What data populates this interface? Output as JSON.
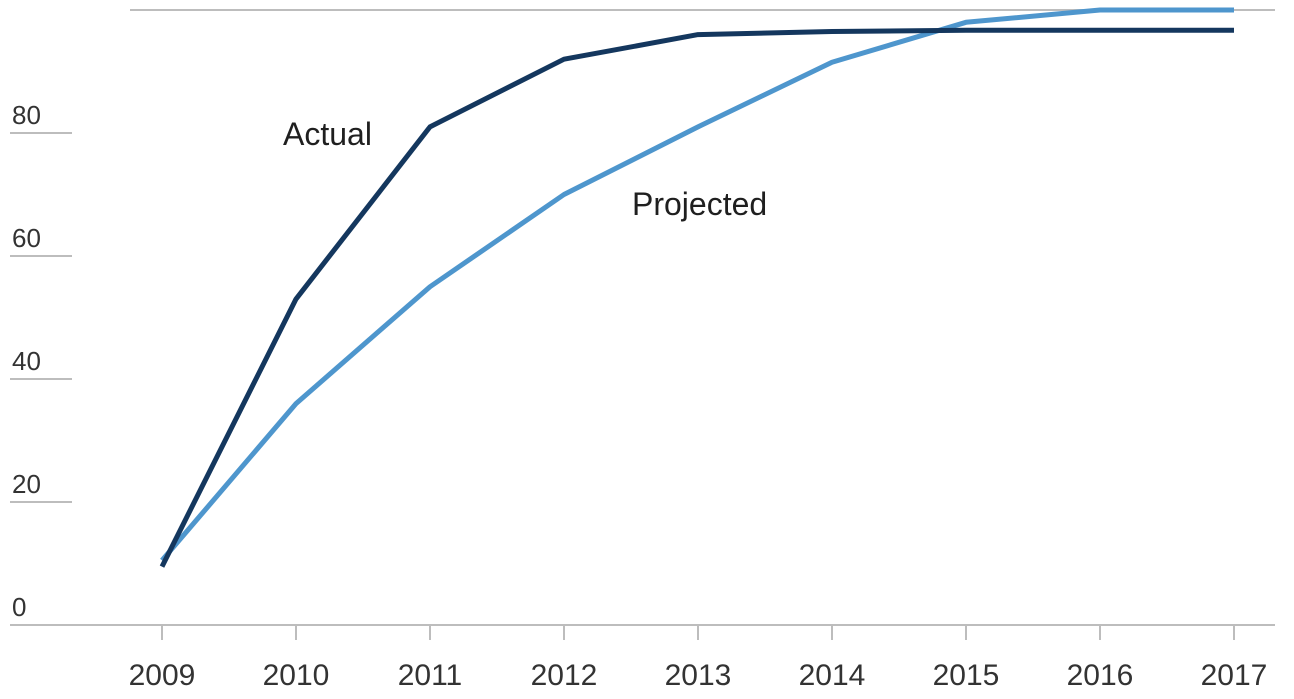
{
  "chart_data": {
    "type": "line",
    "x": [
      2009,
      2010,
      2011,
      2012,
      2013,
      2014,
      2015,
      2016,
      2017
    ],
    "yticks": [
      0,
      20,
      40,
      60,
      80
    ],
    "ylim": [
      0,
      100
    ],
    "grid": false,
    "series": [
      {
        "name": "Actual",
        "color": "#14375e",
        "values": [
          9.5,
          53,
          81,
          92,
          96,
          96.5,
          96.7,
          96.7,
          96.7
        ]
      },
      {
        "name": "Projected",
        "color": "#4e96cd",
        "values": [
          10.5,
          36,
          55,
          70,
          81,
          91.5,
          98,
          100,
          100
        ]
      }
    ]
  },
  "colors": {
    "axis": "#bdbdbd",
    "tick_text": "#333333",
    "label_text": "#1f1f1f"
  }
}
